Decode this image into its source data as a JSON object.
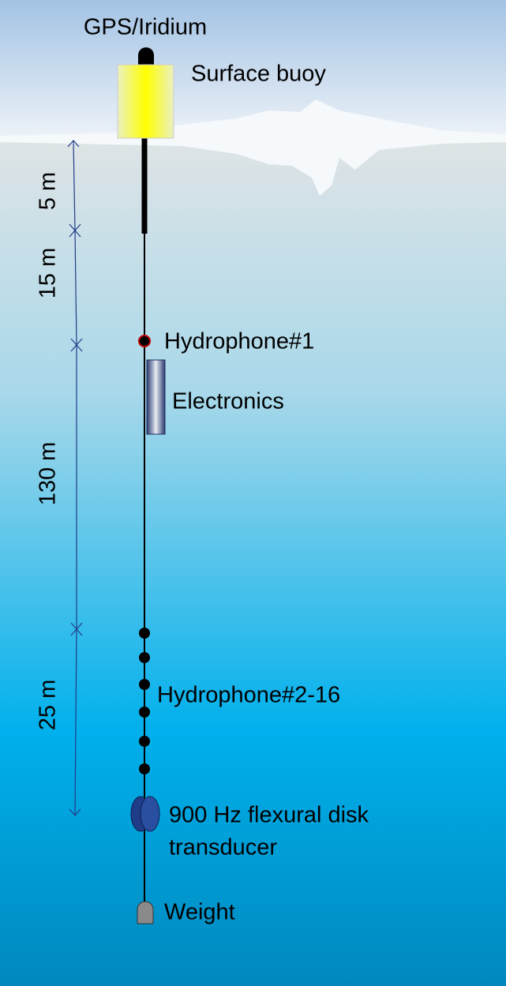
{
  "labels": {
    "antenna": "GPS/Iridium",
    "buoy": "Surface buoy",
    "hydrophone_1": "Hydrophone#1",
    "electronics": "Electronics",
    "hydrophones": "Hydrophone#2-16",
    "transducer": [
      "900 Hz flexural disk",
      "transducer"
    ],
    "weight": "Weight"
  },
  "dimensions": [
    "5 m",
    "15 m",
    "130 m",
    "25 m"
  ]
}
